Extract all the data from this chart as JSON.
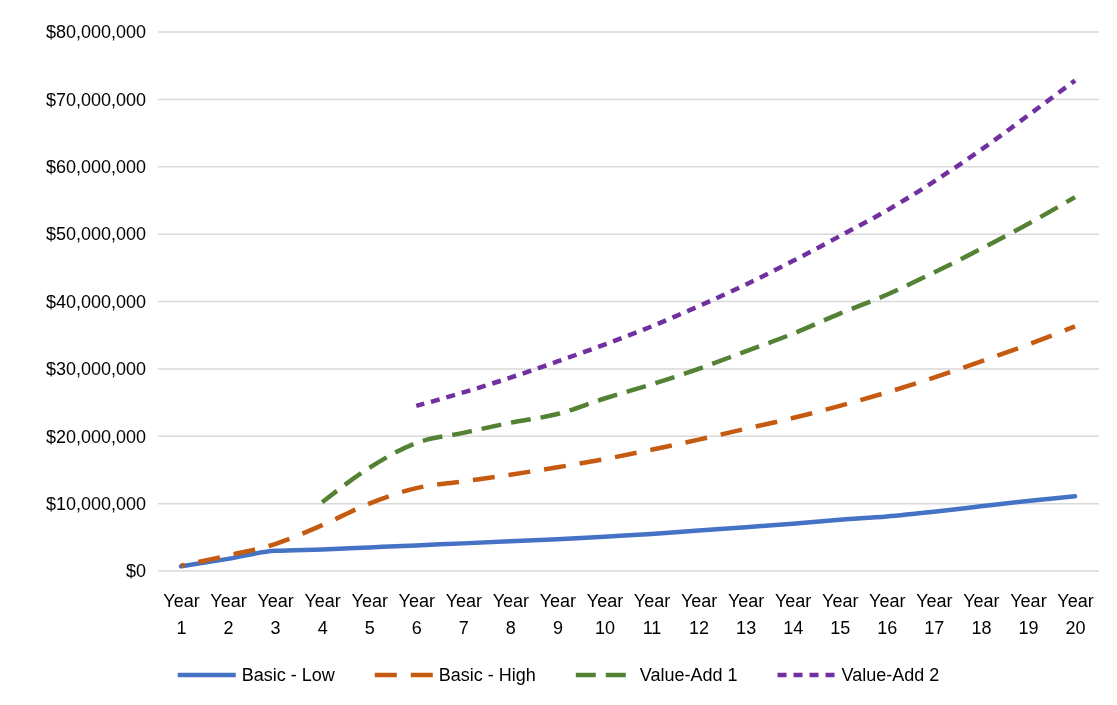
{
  "chart_data": {
    "type": "line",
    "categories": [
      "Year 1",
      "Year 2",
      "Year 3",
      "Year 4",
      "Year 5",
      "Year 6",
      "Year 7",
      "Year 8",
      "Year 9",
      "Year 10",
      "Year 11",
      "Year 12",
      "Year 13",
      "Year 14",
      "Year 15",
      "Year 16",
      "Year 17",
      "Year 18",
      "Year 19",
      "Year 20"
    ],
    "series": [
      {
        "name": "Basic - Low",
        "color": "#4472c4",
        "line_style": "solid",
        "values": [
          700000,
          1800000,
          3000000,
          3200000,
          3500000,
          3800000,
          4100000,
          4400000,
          4700000,
          5100000,
          5500000,
          6000000,
          6500000,
          7000000,
          7600000,
          8100000,
          8800000,
          9600000,
          10400000,
          11100000
        ]
      },
      {
        "name": "Basic - High",
        "color": "#c55a11",
        "line_style": "dashed",
        "values": [
          800000,
          2300000,
          4000000,
          6800000,
          10000000,
          12300000,
          13300000,
          14300000,
          15400000,
          16600000,
          18000000,
          19500000,
          21100000,
          22700000,
          24500000,
          26500000,
          28700000,
          31100000,
          33600000,
          36300000
        ]
      },
      {
        "name": "Value-Add 1",
        "color": "#548235",
        "line_style": "dashed",
        "values": [
          null,
          null,
          null,
          10200000,
          15300000,
          19000000,
          20500000,
          22000000,
          23300000,
          25600000,
          27700000,
          30000000,
          32600000,
          35200000,
          38200000,
          41000000,
          44300000,
          47800000,
          51500000,
          55500000
        ]
      },
      {
        "name": "Value-Add 2",
        "color": "#7030a0",
        "line_style": "dotted",
        "values": [
          null,
          null,
          null,
          null,
          null,
          24500000,
          26500000,
          28700000,
          31100000,
          33600000,
          36300000,
          39300000,
          42500000,
          46000000,
          49700000,
          53500000,
          57800000,
          62500000,
          67600000,
          72800000
        ]
      }
    ],
    "ylim": [
      0,
      80000000
    ],
    "yticks": [
      {
        "value": 0,
        "label": "$0"
      },
      {
        "value": 10000000,
        "label": "$10,000,000"
      },
      {
        "value": 20000000,
        "label": "$20,000,000"
      },
      {
        "value": 30000000,
        "label": "$30,000,000"
      },
      {
        "value": 40000000,
        "label": "$40,000,000"
      },
      {
        "value": 50000000,
        "label": "$50,000,000"
      },
      {
        "value": 60000000,
        "label": "$60,000,000"
      },
      {
        "value": 70000000,
        "label": "$70,000,000"
      },
      {
        "value": 80000000,
        "label": "$80,000,000"
      }
    ],
    "grid": "y",
    "legend": "bottom",
    "marker": "none"
  }
}
